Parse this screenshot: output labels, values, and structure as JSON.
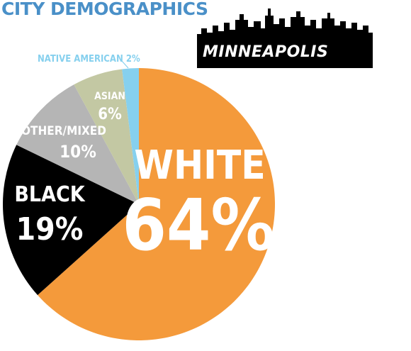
{
  "colors": {
    "title": "#4a90c8",
    "white": "#f49a3b",
    "black": "#000000",
    "other_mixed": "#b5b5b5",
    "asian": "#c3c8a3",
    "native_american": "#86d0ee",
    "skyline": "#000000"
  },
  "logo": {
    "city": "MINNEAPOLIS",
    "icon": "city-skyline-icon"
  },
  "chart_data": {
    "type": "pie",
    "title": "CITY DEMOGRAPHICS",
    "slices": [
      {
        "name": "WHITE",
        "value": 64,
        "label": "64%",
        "color": "#f49a3b"
      },
      {
        "name": "BLACK",
        "value": 19,
        "label": "19%",
        "color": "#000000"
      },
      {
        "name": "OTHER/MIXED",
        "value": 10,
        "label": "10%",
        "color": "#b5b5b5"
      },
      {
        "name": "ASIAN",
        "value": 6,
        "label": "6%",
        "color": "#c3c8a3"
      },
      {
        "name": "NATIVE AMERICAN",
        "value": 2,
        "label": "2%",
        "color": "#86d0ee"
      }
    ]
  }
}
